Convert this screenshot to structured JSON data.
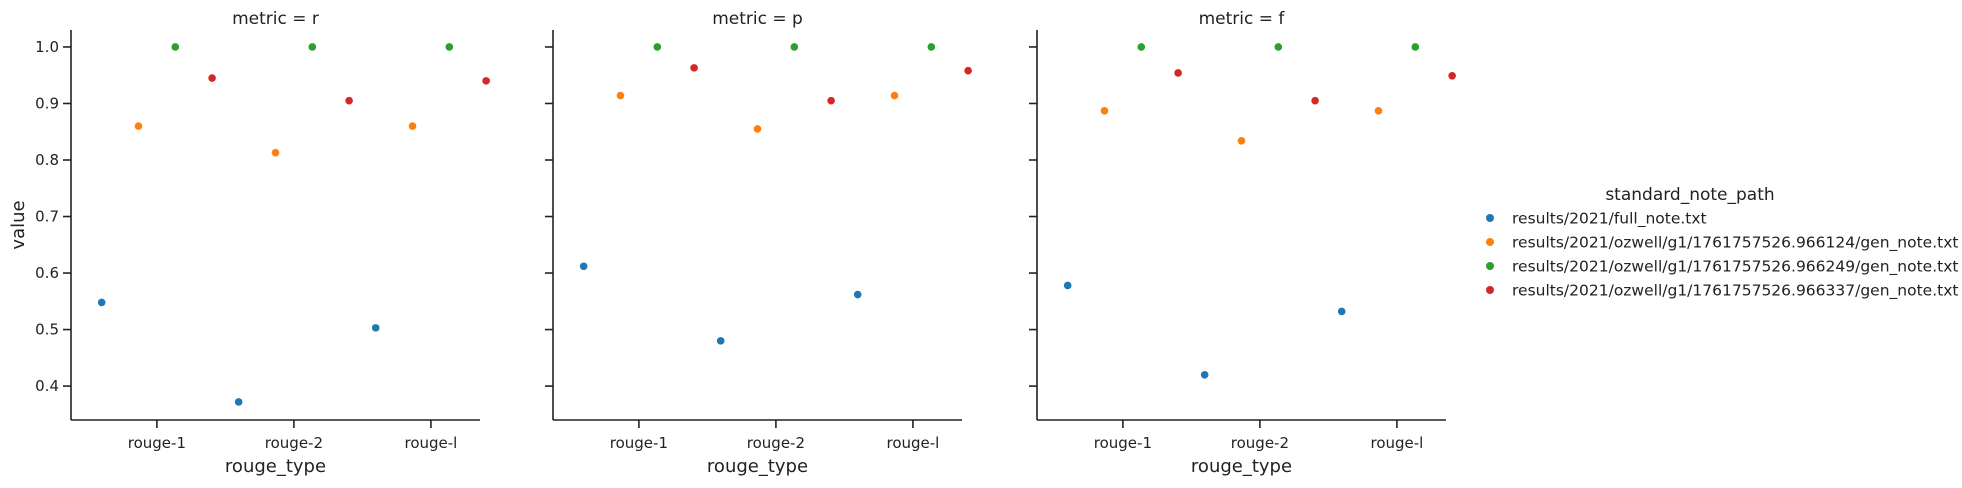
{
  "chart_data": {
    "type": "scatter",
    "layout": "faceted",
    "facet_variable": "metric",
    "xlabel": "rouge_type",
    "ylabel": "value",
    "categories": [
      "rouge-1",
      "rouge-2",
      "rouge-l"
    ],
    "yticks": [
      "0.4",
      "0.5",
      "0.6",
      "0.7",
      "0.8",
      "0.9",
      "1.0"
    ],
    "ylim": [
      0.34,
      1.03
    ],
    "grid": false,
    "legend": {
      "title": "standard_note_path",
      "position": "right",
      "entries": [
        {
          "label": "results/2021/full_note.txt",
          "color": "#1f77b4"
        },
        {
          "label": "results/2021/ozwell/g1/1761757526.966124/gen_note.txt",
          "color": "#ff7f0e"
        },
        {
          "label": "results/2021/ozwell/g1/1761757526.966249/gen_note.txt",
          "color": "#2ca02c"
        },
        {
          "label": "results/2021/ozwell/g1/1761757526.966337/gen_note.txt",
          "color": "#d62728"
        }
      ]
    },
    "panels": [
      {
        "title": "metric = r",
        "series": [
          {
            "values": [
              0.548,
              0.372,
              0.503
            ]
          },
          {
            "values": [
              0.86,
              0.813,
              0.86
            ]
          },
          {
            "values": [
              1.0,
              1.0,
              1.0
            ]
          },
          {
            "values": [
              0.945,
              0.905,
              0.94
            ]
          }
        ]
      },
      {
        "title": "metric = p",
        "series": [
          {
            "values": [
              0.612,
              0.48,
              0.562
            ]
          },
          {
            "values": [
              0.914,
              0.855,
              0.914
            ]
          },
          {
            "values": [
              1.0,
              1.0,
              1.0
            ]
          },
          {
            "values": [
              0.963,
              0.905,
              0.958
            ]
          }
        ]
      },
      {
        "title": "metric = f",
        "series": [
          {
            "values": [
              0.578,
              0.42,
              0.532
            ]
          },
          {
            "values": [
              0.887,
              0.834,
              0.887
            ]
          },
          {
            "values": [
              1.0,
              1.0,
              1.0
            ]
          },
          {
            "values": [
              0.954,
              0.905,
              0.949
            ]
          }
        ]
      }
    ]
  }
}
